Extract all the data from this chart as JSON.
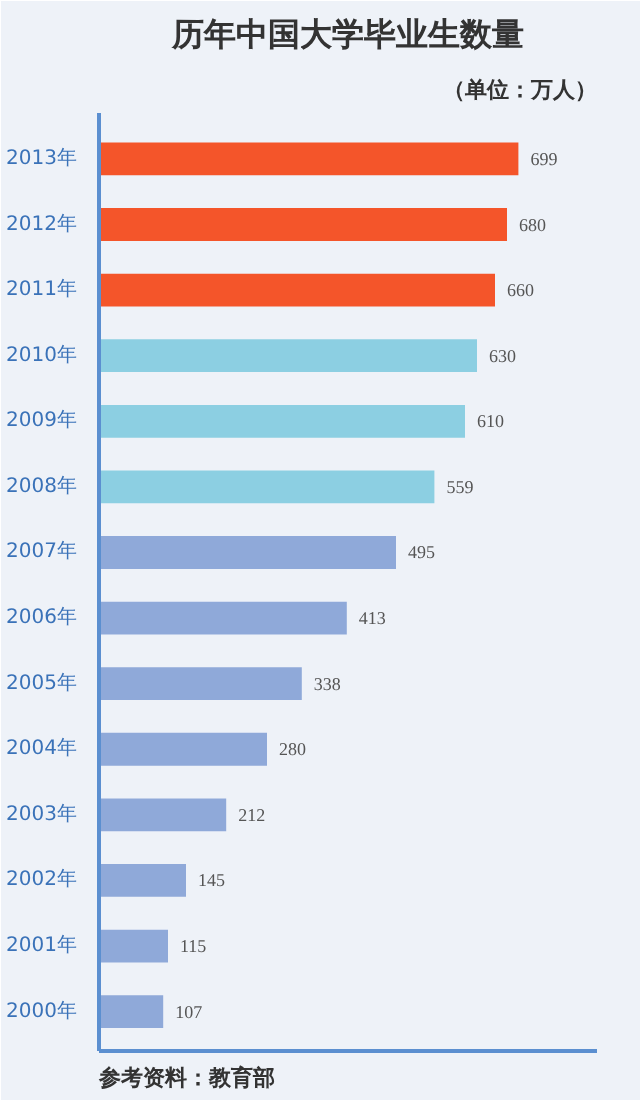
{
  "chart_data": {
    "type": "bar",
    "orientation": "horizontal",
    "title": "历年中国大学毕业生数量",
    "subtitle": "（单位：万人）",
    "categories": [
      "2013年",
      "2012年",
      "2011年",
      "2010年",
      "2009年",
      "2008年",
      "2007年",
      "2006年",
      "2005年",
      "2004年",
      "2003年",
      "2002年",
      "2001年",
      "2000年"
    ],
    "values": [
      699,
      680,
      660,
      630,
      610,
      559,
      495,
      413,
      338,
      280,
      212,
      145,
      115,
      107
    ],
    "colors": [
      "#f4552a",
      "#f4552a",
      "#f4552a",
      "#8ccfe2",
      "#8ccfe2",
      "#8ccfe2",
      "#8fa9d9",
      "#8fa9d9",
      "#8fa9d9",
      "#8fa9d9",
      "#8fa9d9",
      "#8fa9d9",
      "#8fa9d9",
      "#8fa9d9"
    ],
    "xlim": [
      0,
      830
    ],
    "tick_labels": "y",
    "data_labels": true,
    "annotations": [
      "参考资料：教育部"
    ]
  }
}
